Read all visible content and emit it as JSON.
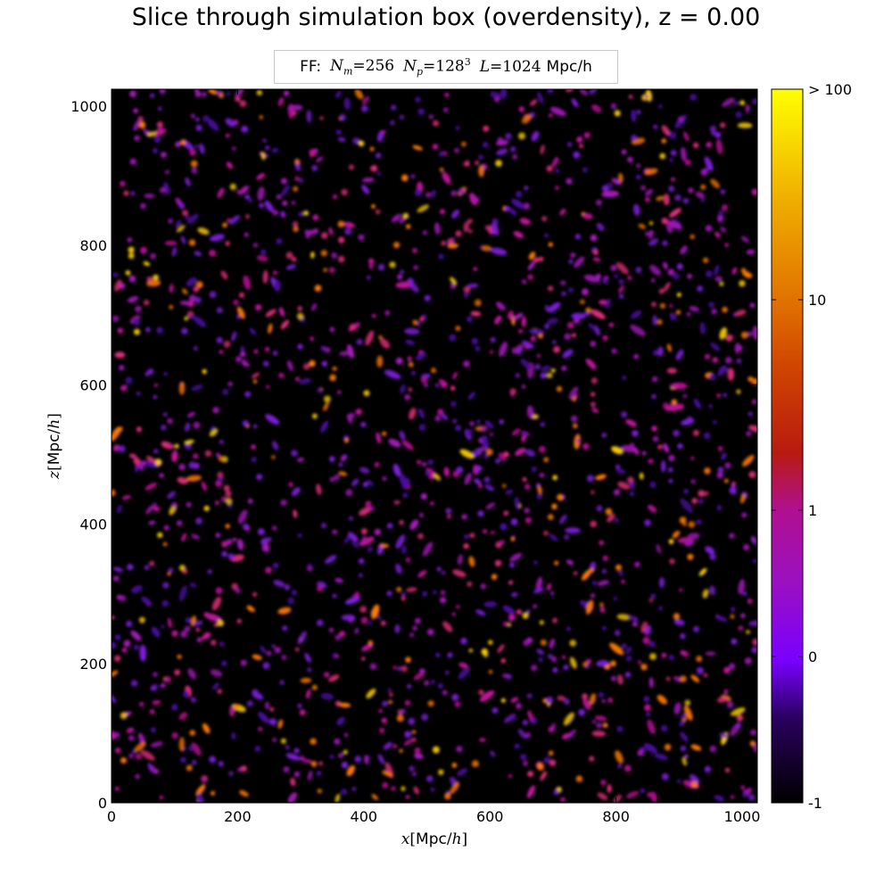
{
  "title": "Slice through simulation box (overdensity), z = 0.00",
  "subtitle": {
    "prefix": "FF:",
    "nm_var": "N",
    "nm_sub": "m",
    "nm_val": "=256",
    "np_var": "N",
    "np_sub": "p",
    "np_val": "=128",
    "np_exp": "3",
    "l_var": "L",
    "l_val": "=1024",
    "l_unit": "Mpc/h"
  },
  "chart_data": {
    "type": "heatmap",
    "title": "Slice through simulation box (overdensity), z = 0.00",
    "xlabel": "x[Mpc/h]",
    "ylabel": "z[Mpc/h]",
    "xlim": [
      0,
      1024
    ],
    "ylim": [
      0,
      1024
    ],
    "x_ticks": [
      0,
      200,
      400,
      600,
      800,
      1000
    ],
    "y_ticks": [
      0,
      200,
      400,
      600,
      800,
      1000
    ],
    "colorbar": {
      "label_values": [
        -1,
        0,
        1,
        10,
        100
      ],
      "tick_labels": [
        "-1",
        "0",
        "1",
        "10",
        "> 100"
      ],
      "colormap": "gnuplot",
      "colors": [
        "#000000",
        "#7a00ff",
        "#b000a0",
        "#c01a00",
        "#e06a00",
        "#ffff00"
      ]
    },
    "background_color": "#000000",
    "halo_colors": [
      "#4a0ca0",
      "#7b1fd6",
      "#a21ab8",
      "#c0139a",
      "#e0307a",
      "#ff7a00",
      "#ffd000"
    ],
    "halo_count": 1700,
    "random_seed": 42
  }
}
